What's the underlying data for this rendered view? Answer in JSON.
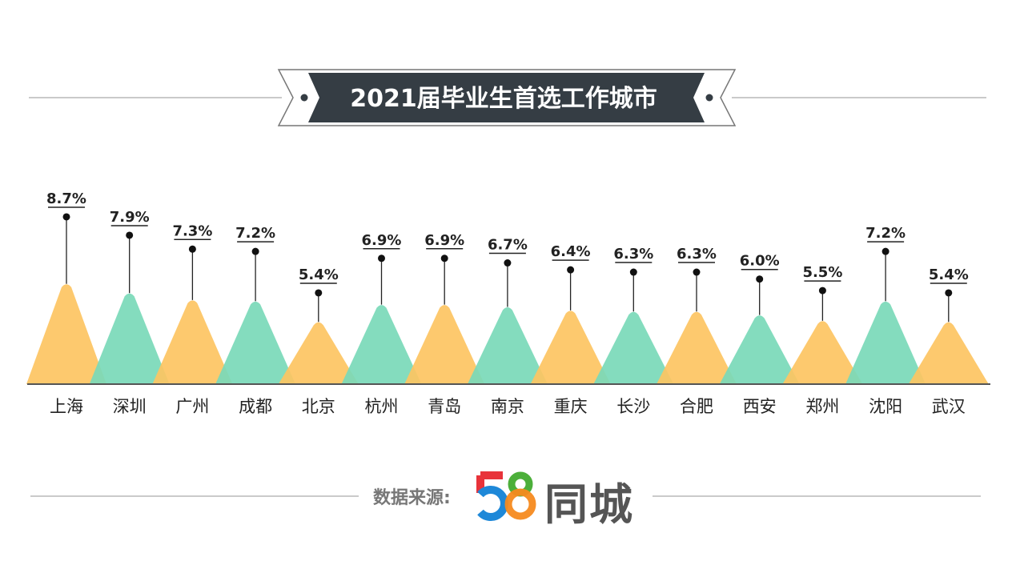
{
  "chart_data": {
    "type": "bar",
    "title": "2021届毕业生首选工作城市",
    "categories": [
      "上海",
      "深圳",
      "广州",
      "成都",
      "北京",
      "杭州",
      "青岛",
      "南京",
      "重庆",
      "长沙",
      "合肥",
      "西安",
      "郑州",
      "沈阳",
      "武汉"
    ],
    "values": [
      8.7,
      7.9,
      7.3,
      7.2,
      5.4,
      6.9,
      6.9,
      6.7,
      6.4,
      6.3,
      6.3,
      6.0,
      5.5,
      7.2,
      5.4
    ],
    "value_labels": [
      "8.7%",
      "7.9%",
      "7.3%",
      "7.2%",
      "5.4%",
      "6.9%",
      "6.9%",
      "6.7%",
      "6.4%",
      "6.3%",
      "6.3%",
      "6.0%",
      "5.5%",
      "7.2%",
      "5.4%"
    ],
    "unit": "%",
    "grid": false,
    "colors": [
      "#FDC462",
      "#79D9B9"
    ]
  },
  "source": {
    "label": "数据来源:",
    "logo_number": "58",
    "logo_text": "同城",
    "logo_colors": [
      "#E8333A",
      "#1E88D8",
      "#4CAF3A",
      "#F58A1F"
    ]
  },
  "banner_color": "#353D44"
}
